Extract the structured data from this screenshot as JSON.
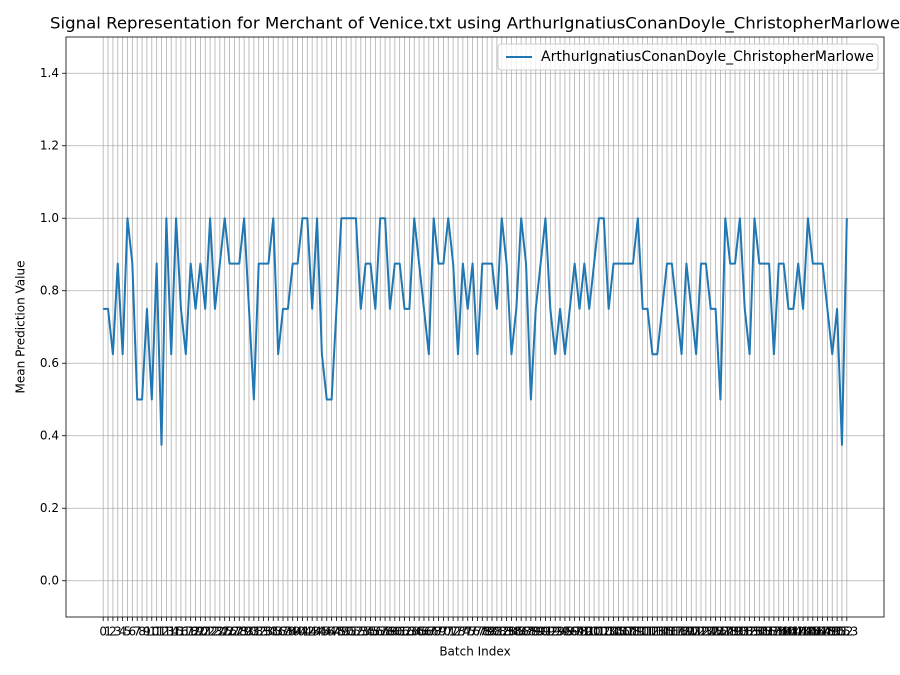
{
  "chart_data": {
    "type": "line",
    "title": "Signal Representation for Merchant of Venice.txt using ArthurIgnatiusConanDoyle_ChristopherMarlowe",
    "x_label": "Batch Index",
    "y_label": "Mean Prediction Value",
    "x": [
      0,
      1,
      2,
      3,
      4,
      5,
      6,
      7,
      8,
      9,
      10,
      11,
      12,
      13,
      14,
      15,
      16,
      17,
      18,
      19,
      20,
      21,
      22,
      23,
      24,
      25,
      26,
      27,
      28,
      29,
      30,
      31,
      32,
      33,
      34,
      35,
      36,
      37,
      38,
      39,
      40,
      41,
      42,
      43,
      44,
      45,
      46,
      47,
      48,
      49,
      50,
      51,
      52,
      53,
      54,
      55,
      56,
      57,
      58,
      59,
      60,
      61,
      62,
      63,
      64,
      65,
      66,
      67,
      68,
      69,
      70,
      71,
      72,
      73,
      74,
      75,
      76,
      77,
      78,
      79,
      80,
      81,
      82,
      83,
      84,
      85,
      86,
      87,
      88,
      89,
      90,
      91,
      92,
      93,
      94,
      95,
      96,
      97,
      98,
      99,
      100,
      101,
      102,
      103,
      104,
      105,
      106,
      107,
      108,
      109,
      110,
      111,
      112,
      113,
      114,
      115,
      116,
      117,
      118,
      119,
      120,
      121,
      122,
      123,
      124,
      125,
      126,
      127,
      128,
      129,
      130,
      131,
      132,
      133,
      134,
      135,
      136,
      137,
      138,
      139,
      140,
      141,
      142,
      143,
      144,
      145,
      146,
      147,
      148,
      149,
      150,
      151,
      152,
      153
    ],
    "series": [
      {
        "name": "ArthurIgnatiusConanDoyle_ChristopherMarlowe",
        "color": "#1f77b4",
        "values": [
          0.75,
          0.75,
          0.625,
          0.875,
          0.625,
          1,
          0.875,
          0.5,
          0.5,
          0.75,
          0.5,
          0.875,
          0.375,
          1,
          0.625,
          1,
          0.75,
          0.625,
          0.875,
          0.75,
          0.875,
          0.75,
          1,
          0.75,
          0.875,
          1,
          0.875,
          0.875,
          0.875,
          1,
          0.75,
          0.5,
          0.875,
          0.875,
          0.875,
          1,
          0.625,
          0.75,
          0.75,
          0.875,
          0.875,
          1,
          1,
          0.75,
          1,
          0.625,
          0.5,
          0.5,
          0.75,
          1,
          1,
          1,
          1,
          0.75,
          0.875,
          0.875,
          0.75,
          1,
          1,
          0.75,
          0.875,
          0.875,
          0.75,
          0.75,
          1,
          0.875,
          0.75,
          0.625,
          1,
          0.875,
          0.875,
          1,
          0.875,
          0.625,
          0.875,
          0.75,
          0.875,
          0.625,
          0.875,
          0.875,
          0.875,
          0.75,
          1,
          0.875,
          0.625,
          0.75,
          1,
          0.875,
          0.5,
          0.75,
          0.875,
          1,
          0.75,
          0.625,
          0.75,
          0.625,
          0.75,
          0.875,
          0.75,
          0.875,
          0.75,
          0.875,
          1,
          1,
          0.75,
          0.875,
          0.875,
          0.875,
          0.875,
          0.875,
          1,
          0.75,
          0.75,
          0.625,
          0.625,
          0.75,
          0.875,
          0.875,
          0.75,
          0.625,
          0.875,
          0.75,
          0.625,
          0.875,
          0.875,
          0.75,
          0.75,
          0.5,
          1,
          0.875,
          0.875,
          1,
          0.75,
          0.625,
          1,
          0.875,
          0.875,
          0.875,
          0.625,
          0.875,
          0.875,
          0.75,
          0.75,
          0.875,
          0.75,
          1,
          0.875,
          0.875,
          0.875,
          0.75,
          0.625,
          0.75,
          0.375,
          1
        ]
      }
    ],
    "xlim": [
      -7.65,
      160.65
    ],
    "xticks": [
      0,
      1,
      2,
      3,
      4,
      5,
      6,
      7,
      8,
      9,
      10,
      11,
      12,
      13,
      14,
      15,
      16,
      17,
      18,
      19,
      20,
      21,
      22,
      23,
      24,
      25,
      26,
      27,
      28,
      29,
      30,
      31,
      32,
      33,
      34,
      35,
      36,
      37,
      38,
      39,
      40,
      41,
      42,
      43,
      44,
      45,
      46,
      47,
      48,
      49,
      50,
      51,
      52,
      53,
      54,
      55,
      56,
      57,
      58,
      59,
      60,
      61,
      62,
      63,
      64,
      65,
      66,
      67,
      68,
      69,
      70,
      71,
      72,
      73,
      74,
      75,
      76,
      77,
      78,
      79,
      80,
      81,
      82,
      83,
      84,
      85,
      86,
      87,
      88,
      89,
      90,
      91,
      92,
      93,
      94,
      95,
      96,
      97,
      98,
      99,
      100,
      101,
      102,
      103,
      104,
      105,
      106,
      107,
      108,
      109,
      110,
      111,
      112,
      113,
      114,
      115,
      116,
      117,
      118,
      119,
      120,
      121,
      122,
      123,
      124,
      125,
      126,
      127,
      128,
      129,
      130,
      131,
      132,
      133,
      134,
      135,
      136,
      137,
      138,
      139,
      140,
      141,
      142,
      143,
      144,
      145,
      146,
      147,
      148,
      149,
      150,
      151,
      152,
      153
    ],
    "ylim": [
      -0.1,
      1.5
    ],
    "yticks": [
      {
        "value": 0,
        "label": "0.0"
      },
      0.2,
      0.4,
      0.6,
      0.8,
      {
        "value": 1,
        "label": "1.0"
      },
      1.2,
      1.4
    ],
    "grid": true,
    "legend": "upper right"
  }
}
